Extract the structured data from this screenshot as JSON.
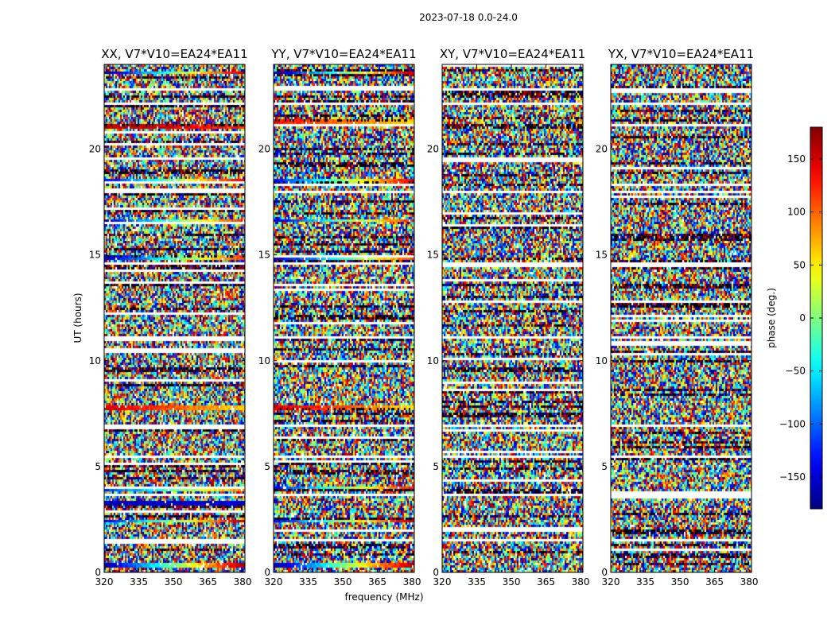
{
  "chart_data": {
    "type": "heatmap",
    "suptitle": "2023-07-18 0.0-24.0",
    "panels": [
      {
        "title": "XX, V7*V10=EA24*EA11",
        "pol": "XX"
      },
      {
        "title": "YY, V7*V10=EA24*EA11",
        "pol": "YY"
      },
      {
        "title": "XY, V7*V10=EA24*EA11",
        "pol": "XY"
      },
      {
        "title": "YX, V7*V10=EA24*EA11",
        "pol": "YX"
      }
    ],
    "xlabel": "frequency (MHz)",
    "ylabel": "UT (hours)",
    "xlim": [
      320,
      381
    ],
    "ylim": [
      0,
      24
    ],
    "xticks": [
      320,
      335,
      350,
      365,
      380
    ],
    "yticks": [
      0,
      5,
      10,
      15,
      20
    ],
    "colorbar": {
      "label": "phase (deg.)",
      "range": [
        -180,
        180
      ],
      "ticks": [
        -150,
        -100,
        -50,
        0,
        50,
        100,
        150
      ],
      "tick_labels": [
        "−150",
        "−100",
        "−50",
        "0",
        "50",
        "100",
        "150"
      ],
      "colormap": "jet"
    },
    "flagged_rows_ut": [
      0.45,
      1.5,
      3.7,
      5.5,
      6.9,
      11.1,
      14.6,
      16.9,
      18.0,
      22.1,
      22.85
    ],
    "structured_rows": [
      {
        "ut": 0.35,
        "phase_start": -170,
        "phase_end": 170,
        "pols": [
          "XX",
          "YY"
        ]
      },
      {
        "ut": 2.4,
        "phase_start": -140,
        "phase_end": 160,
        "pols": [
          "XX",
          "YY"
        ]
      },
      {
        "ut": 3.3,
        "phase_start": -160,
        "phase_end": -150,
        "pols": [
          "XX"
        ]
      },
      {
        "ut": 3.9,
        "phase_start": -120,
        "phase_end": 100,
        "pols": [
          "XX"
        ]
      },
      {
        "ut": 4.0,
        "phase_start": -130,
        "phase_end": 130,
        "pols": [
          "YY"
        ]
      },
      {
        "ut": 7.8,
        "phase_start": 150,
        "phase_end": 60,
        "pols": [
          "XX",
          "YY"
        ]
      },
      {
        "ut": 14.9,
        "phase_start": -160,
        "phase_end": 120,
        "pols": [
          "XX",
          "YY"
        ]
      },
      {
        "ut": 16.6,
        "phase_start": -150,
        "phase_end": 130,
        "pols": [
          "XX",
          "YY"
        ]
      },
      {
        "ut": 18.45,
        "phase_start": -140,
        "phase_end": 150,
        "pols": [
          "XX",
          "YY"
        ]
      },
      {
        "ut": 21.1,
        "phase_start": 160,
        "phase_end": 120,
        "pols": [
          "XX"
        ]
      },
      {
        "ut": 21.3,
        "phase_start": 130,
        "phase_end": 60,
        "pols": [
          "YY"
        ]
      },
      {
        "ut": 23.6,
        "phase_start": -170,
        "phase_end": 160,
        "pols": [
          "XX",
          "YY"
        ]
      }
    ]
  }
}
